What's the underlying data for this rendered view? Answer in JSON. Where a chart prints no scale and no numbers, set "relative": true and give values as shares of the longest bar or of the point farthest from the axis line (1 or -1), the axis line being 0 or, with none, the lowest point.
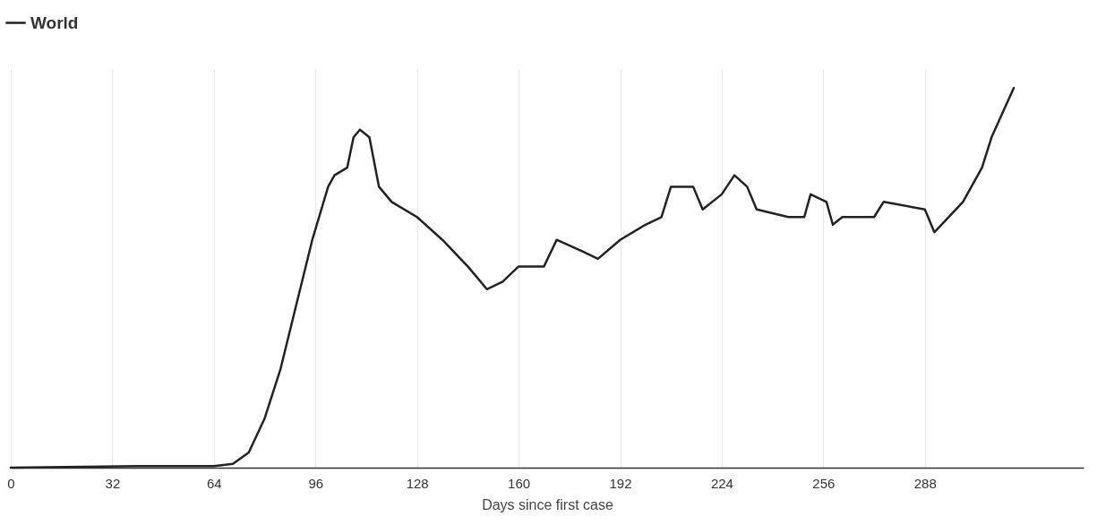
{
  "chart_data": {
    "type": "line",
    "xlabel": "Days since first case",
    "relative": true,
    "xlim": [
      0,
      338
    ],
    "xticks": [
      0,
      32,
      64,
      96,
      128,
      160,
      192,
      224,
      256,
      288
    ],
    "x": [
      0,
      40,
      64,
      70,
      75,
      80,
      85,
      90,
      95,
      100,
      102,
      106,
      108,
      110,
      113,
      116,
      120,
      128,
      136,
      144,
      150,
      155,
      160,
      168,
      172,
      180,
      185,
      192,
      200,
      205,
      208,
      215,
      218,
      224,
      228,
      232,
      235,
      245,
      250,
      252,
      257,
      259,
      262,
      272,
      275,
      288,
      291,
      300,
      306,
      309,
      316
    ],
    "series": [
      {
        "name": "World",
        "color": "#222222",
        "values": [
          0,
          0.004,
          0.004,
          0.01,
          0.04,
          0.13,
          0.26,
          0.43,
          0.6,
          0.74,
          0.77,
          0.79,
          0.87,
          0.89,
          0.87,
          0.74,
          0.7,
          0.66,
          0.6,
          0.53,
          0.47,
          0.49,
          0.53,
          0.53,
          0.6,
          0.57,
          0.55,
          0.6,
          0.64,
          0.66,
          0.74,
          0.74,
          0.68,
          0.72,
          0.77,
          0.74,
          0.68,
          0.66,
          0.66,
          0.72,
          0.7,
          0.64,
          0.66,
          0.66,
          0.7,
          0.68,
          0.62,
          0.7,
          0.79,
          0.87,
          1
        ]
      }
    ],
    "grid": "x",
    "legend": "top left",
    "line_style": "solid",
    "marker": "none"
  }
}
